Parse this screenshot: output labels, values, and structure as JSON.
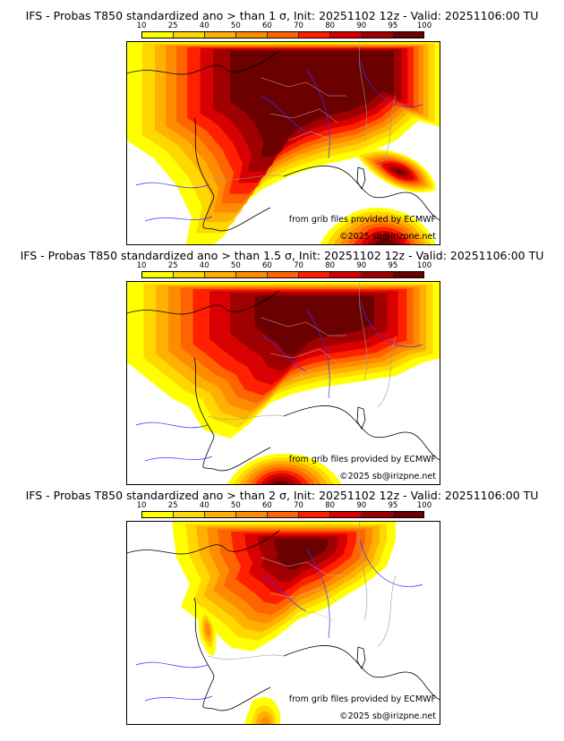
{
  "colorbar": {
    "ticks": [
      "10",
      "25",
      "40",
      "50",
      "60",
      "70",
      "80",
      "90",
      "95",
      "100"
    ],
    "colors": [
      "#ffff00",
      "#ffd800",
      "#ffb000",
      "#ff8c00",
      "#ff6400",
      "#ff2000",
      "#d80000",
      "#a00000",
      "#6a0000"
    ]
  },
  "panels": [
    {
      "title": "IFS - Probas T850  standardized ano > than 1 σ, Init: 20251102 12z - Valid: 20251106:00 TU",
      "credit": "from grib files provided by ECMWF",
      "copyright": "©2025 sb@irizpne.net"
    },
    {
      "title": "IFS - Probas T850  standardized ano > than 1.5 σ, Init: 20251102 12z - Valid: 20251106:00 TU",
      "credit": "from grib files provided by ECMWF",
      "copyright": "©2025 sb@irizpne.net"
    },
    {
      "title": "IFS - Probas T850  standardized ano > than 2 σ, Init: 20251102 12z - Valid: 20251106:00 TU",
      "credit": "from grib files provided by ECMWF",
      "copyright": "©2025 sb@irizpne.net"
    }
  ]
}
